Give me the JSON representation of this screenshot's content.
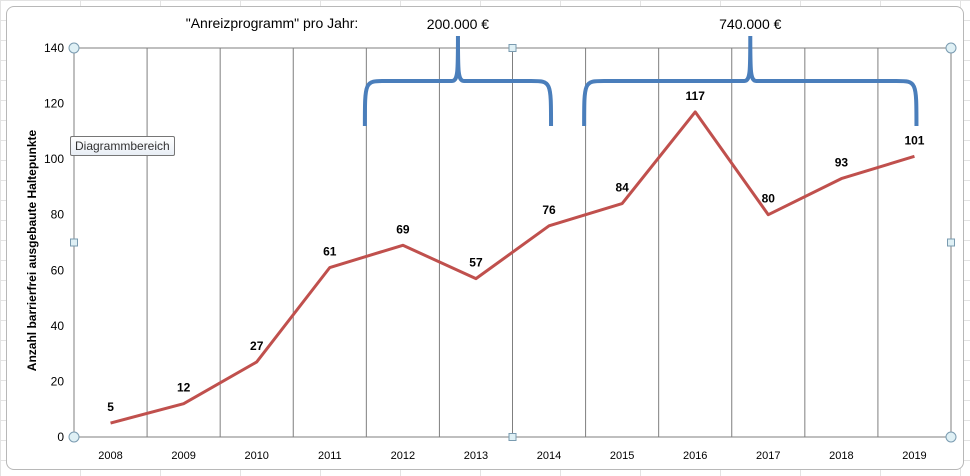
{
  "tooltip": "Diagrammbereich",
  "chart_data": {
    "type": "line",
    "title": "\"Anreizprogramm\" pro Jahr:",
    "ylabel": "Anzahl barrierfrei ausgebaute Haltepunkte",
    "xlabel": "",
    "categories": [
      "2008",
      "2009",
      "2010",
      "2011",
      "2012",
      "2013",
      "2014",
      "2015",
      "2016",
      "2017",
      "2018",
      "2019"
    ],
    "values": [
      5,
      12,
      27,
      61,
      69,
      57,
      76,
      84,
      117,
      80,
      93,
      101
    ],
    "ylim": [
      0,
      140
    ],
    "yticks": [
      0,
      20,
      40,
      60,
      80,
      100,
      120,
      140
    ],
    "grid": "vertical",
    "series_color": "#c0504d",
    "annotations": [
      {
        "label": "200.000 €",
        "from": "2012",
        "to": "2014"
      },
      {
        "label": "740.000 €",
        "from": "2015",
        "to": "2019"
      }
    ],
    "brace_color": "#4a7ebb"
  }
}
